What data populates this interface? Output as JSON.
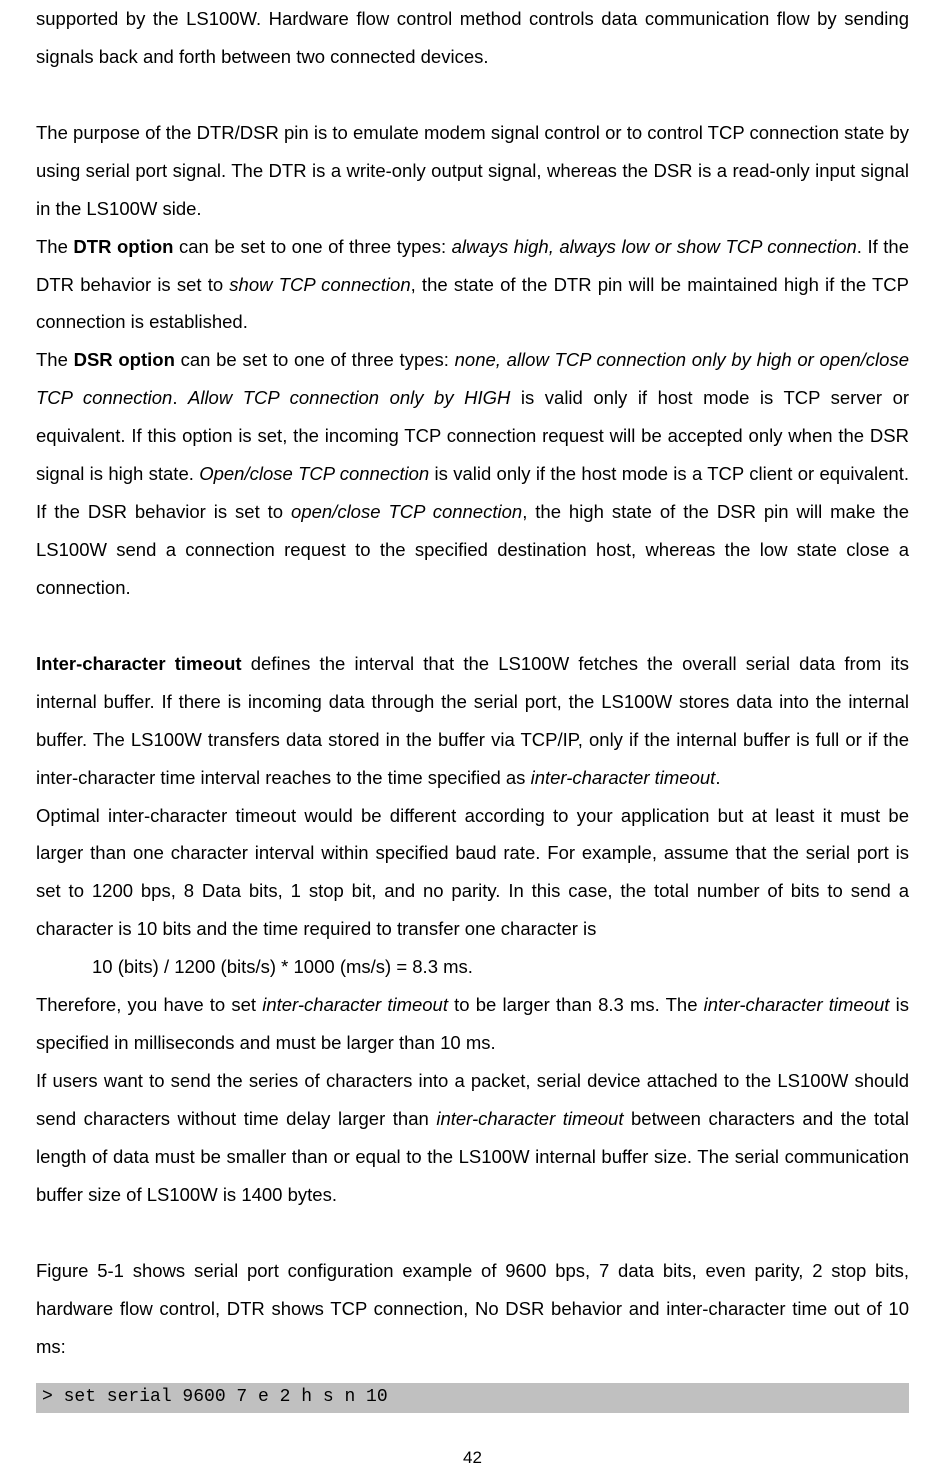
{
  "page": {
    "text_color": "#000000",
    "background_color": "#ffffff",
    "code_bg_color": "#c0c0c0",
    "font_size_pt": 14,
    "line_height": 2.05,
    "number": "42"
  },
  "p1_a": "supported by the LS100W. Hardware flow control method controls data communication flow by sending signals back and forth between two connected devices.",
  "p2_a": "The purpose of the DTR/DSR pin is to emulate modem signal control or to control TCP connection state by using serial port signal. The DTR is a write-only output signal, whereas the DSR is a read-only input signal in the LS100W side.",
  "p3_a": "The ",
  "p3_b": "DTR option",
  "p3_c": " can be set to one of three types: ",
  "p3_d": "always high, always low or show TCP connection",
  "p3_e": ". If the DTR behavior is set to ",
  "p3_f": "show TCP connection",
  "p3_g": ", the state of the DTR pin will be maintained high if the TCP connection is established.",
  "p4_a": "The ",
  "p4_b": "DSR option",
  "p4_c": " can be set to one of three types: ",
  "p4_d": "none, allow TCP connection only by high or open/close TCP connection",
  "p4_e": ". ",
  "p4_f": "Allow TCP connection only by HIGH",
  "p4_g": " is valid only if host mode is TCP server or equivalent. If this option is set, the incoming TCP connection request will be accepted only when the DSR signal is high state. ",
  "p4_h": "Open/close TCP connection",
  "p4_i": " is valid only if the host mode is a TCP client or equivalent. If the DSR behavior is set to ",
  "p4_j": "open/close TCP connection",
  "p4_k": ", the high state of the DSR pin will make the LS100W send a connection request to the specified destination host, whereas the low state close a connection.",
  "p5_a": "Inter-character timeout",
  "p5_b": " defines the interval that the LS100W fetches the overall serial data from its internal buffer. If there is incoming data through the serial port, the LS100W stores data into the internal buffer. The LS100W transfers data stored in the buffer via TCP/IP, only if the internal buffer is full or if the inter-character time interval reaches to the time specified as ",
  "p5_c": "inter-character timeout",
  "p5_d": ".",
  "p6_a": "Optimal inter-character timeout would be different according to your application but at least it must be larger than one character interval within specified baud rate. For example, assume that the serial port is set to 1200 bps, 8 Data bits, 1 stop bit, and no parity. In this case, the total number of bits to send a character is 10 bits and the time required to transfer one character is",
  "p7_calc": "10 (bits) / 1200 (bits/s) * 1000 (ms/s) = 8.3 ms.",
  "p8_a": "Therefore, you have to set ",
  "p8_b": "inter-character timeout",
  "p8_c": " to be larger than 8.3 ms. The ",
  "p8_d": "inter-character timeout",
  "p8_e": " is specified in milliseconds and must be larger than 10 ms.",
  "p9_a": "If users want to send the series of characters into a packet, serial device attached to the LS100W should send characters without time delay larger than ",
  "p9_b": "inter-character timeout",
  "p9_c": " between characters and the total length of data must be smaller than or equal to the LS100W internal buffer size. The serial communication buffer size of LS100W is 1400 bytes.",
  "p10_a": "Figure 5-1 shows serial port configuration example of 9600 bps, 7 data bits, even parity, 2 stop bits, hardware flow control, DTR shows TCP connection, No DSR behavior and inter-character time out of 10 ms:",
  "code": "> set serial 9600 7 e 2 h s n 10"
}
